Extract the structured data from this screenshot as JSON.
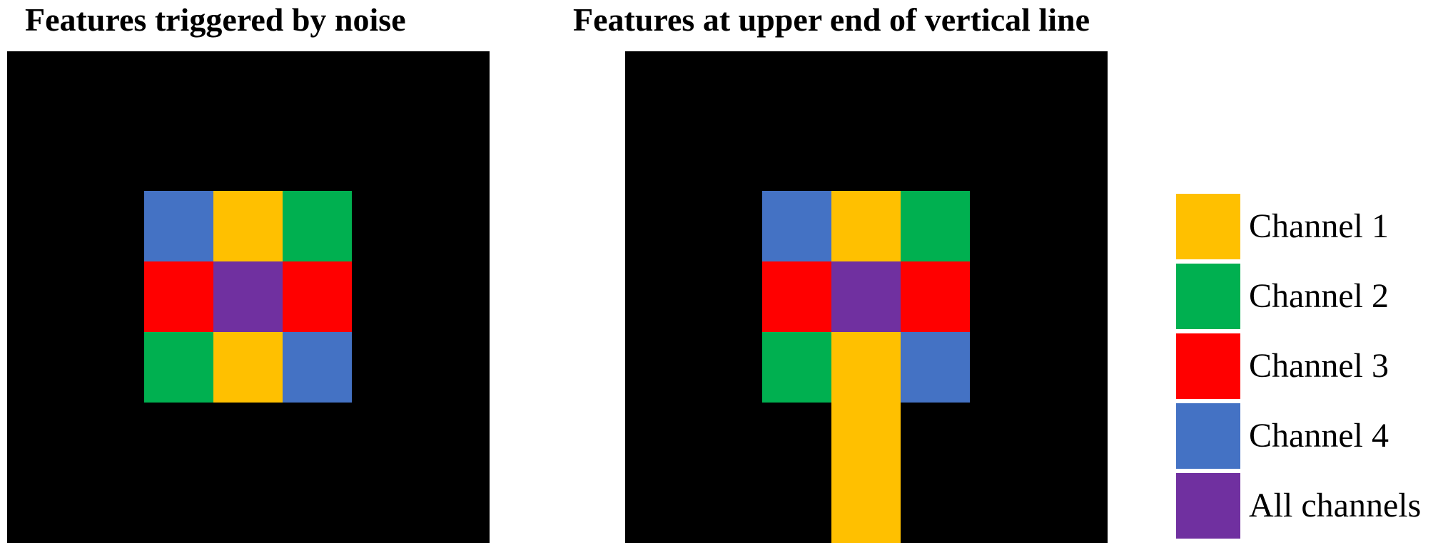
{
  "panels": {
    "left": {
      "title": "Features triggered by noise",
      "grid": [
        [
          "Channel 4",
          "Channel 1",
          "Channel 2"
        ],
        [
          "Channel 3",
          "All channels",
          "Channel 3"
        ],
        [
          "Channel 2",
          "Channel 1",
          "Channel 4"
        ]
      ],
      "extension": null
    },
    "right": {
      "title": "Features at upper end of vertical line",
      "grid": [
        [
          "Channel 4",
          "Channel 1",
          "Channel 2"
        ],
        [
          "Channel 3",
          "All channels",
          "Channel 3"
        ],
        [
          "Channel 2",
          "Channel 1",
          "Channel 4"
        ]
      ],
      "extension": "Channel 1"
    }
  },
  "legend": {
    "items": [
      {
        "label": "Channel 1",
        "color": "#FFC000"
      },
      {
        "label": "Channel 2",
        "color": "#00B050"
      },
      {
        "label": "Channel 3",
        "color": "#FF0000"
      },
      {
        "label": "Channel 4",
        "color": "#4472C4"
      },
      {
        "label": "All channels",
        "color": "#7030A0"
      }
    ]
  },
  "colors": {
    "background": "#000000"
  }
}
